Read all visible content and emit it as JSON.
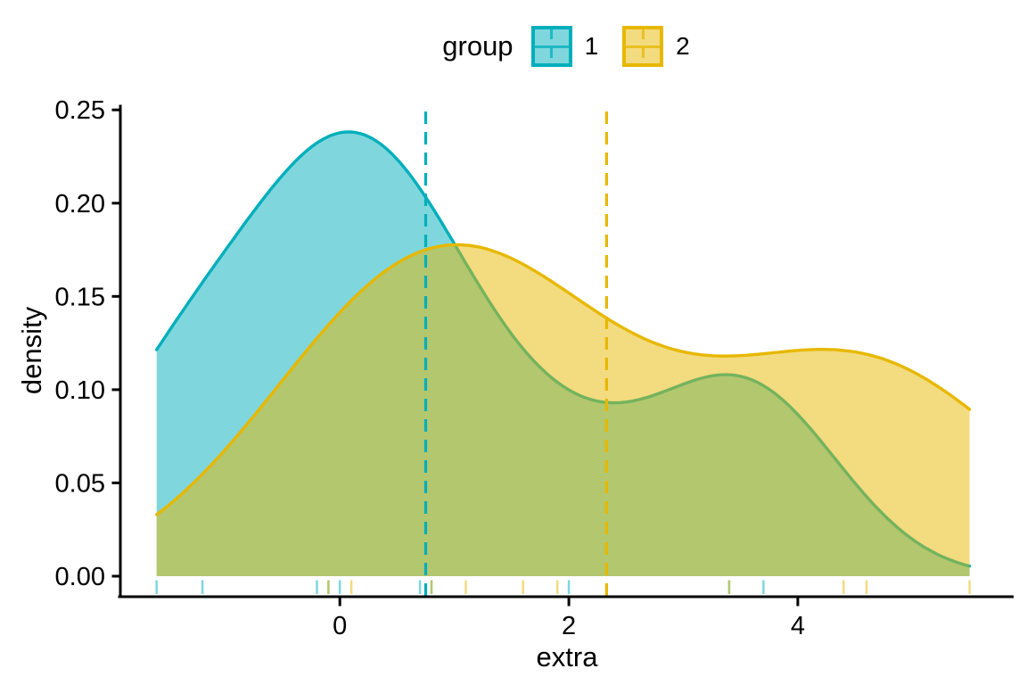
{
  "chart_data": {
    "type": "density",
    "title": "",
    "xlabel": "extra",
    "ylabel": "density",
    "legend_title": "group",
    "legend_position": "top",
    "grid": false,
    "fill_alpha": 0.5,
    "xlim": [
      -1.925,
      5.885
    ],
    "ylim": [
      -0.011,
      0.2525
    ],
    "curve_range": [
      -1.6,
      5.5
    ],
    "x_ticks": [
      {
        "v": 0,
        "label": "0"
      },
      {
        "v": 2,
        "label": "2"
      },
      {
        "v": 4,
        "label": "4"
      }
    ],
    "y_ticks": [
      {
        "v": 0.0,
        "label": "0.00"
      },
      {
        "v": 0.05,
        "label": "0.05"
      },
      {
        "v": 0.1,
        "label": "0.10"
      },
      {
        "v": 0.15,
        "label": "0.15"
      },
      {
        "v": 0.2,
        "label": "0.20"
      },
      {
        "v": 0.25,
        "label": "0.25"
      }
    ],
    "groups": [
      {
        "label": "1",
        "color": "#00AFBB",
        "values": [
          0.7,
          -1.6,
          -0.2,
          -1.2,
          -0.1,
          3.4,
          3.7,
          0.8,
          0.0,
          2.0
        ],
        "mean": 0.75,
        "bandwidth": 0.7946,
        "mean_line_style": "dashed",
        "rug": true
      },
      {
        "label": "2",
        "color": "#E7B800",
        "values": [
          1.9,
          0.8,
          1.1,
          0.1,
          -0.1,
          4.4,
          5.5,
          1.6,
          4.6,
          3.4
        ],
        "mean": 2.33,
        "bandwidth": 1.1372,
        "mean_line_style": "dashed",
        "rug": true
      }
    ]
  },
  "legend": {
    "title": "group",
    "items": [
      {
        "label": "1"
      },
      {
        "label": "2"
      }
    ]
  },
  "axes": {
    "x": {
      "title": "extra"
    },
    "y": {
      "title": "density"
    }
  }
}
